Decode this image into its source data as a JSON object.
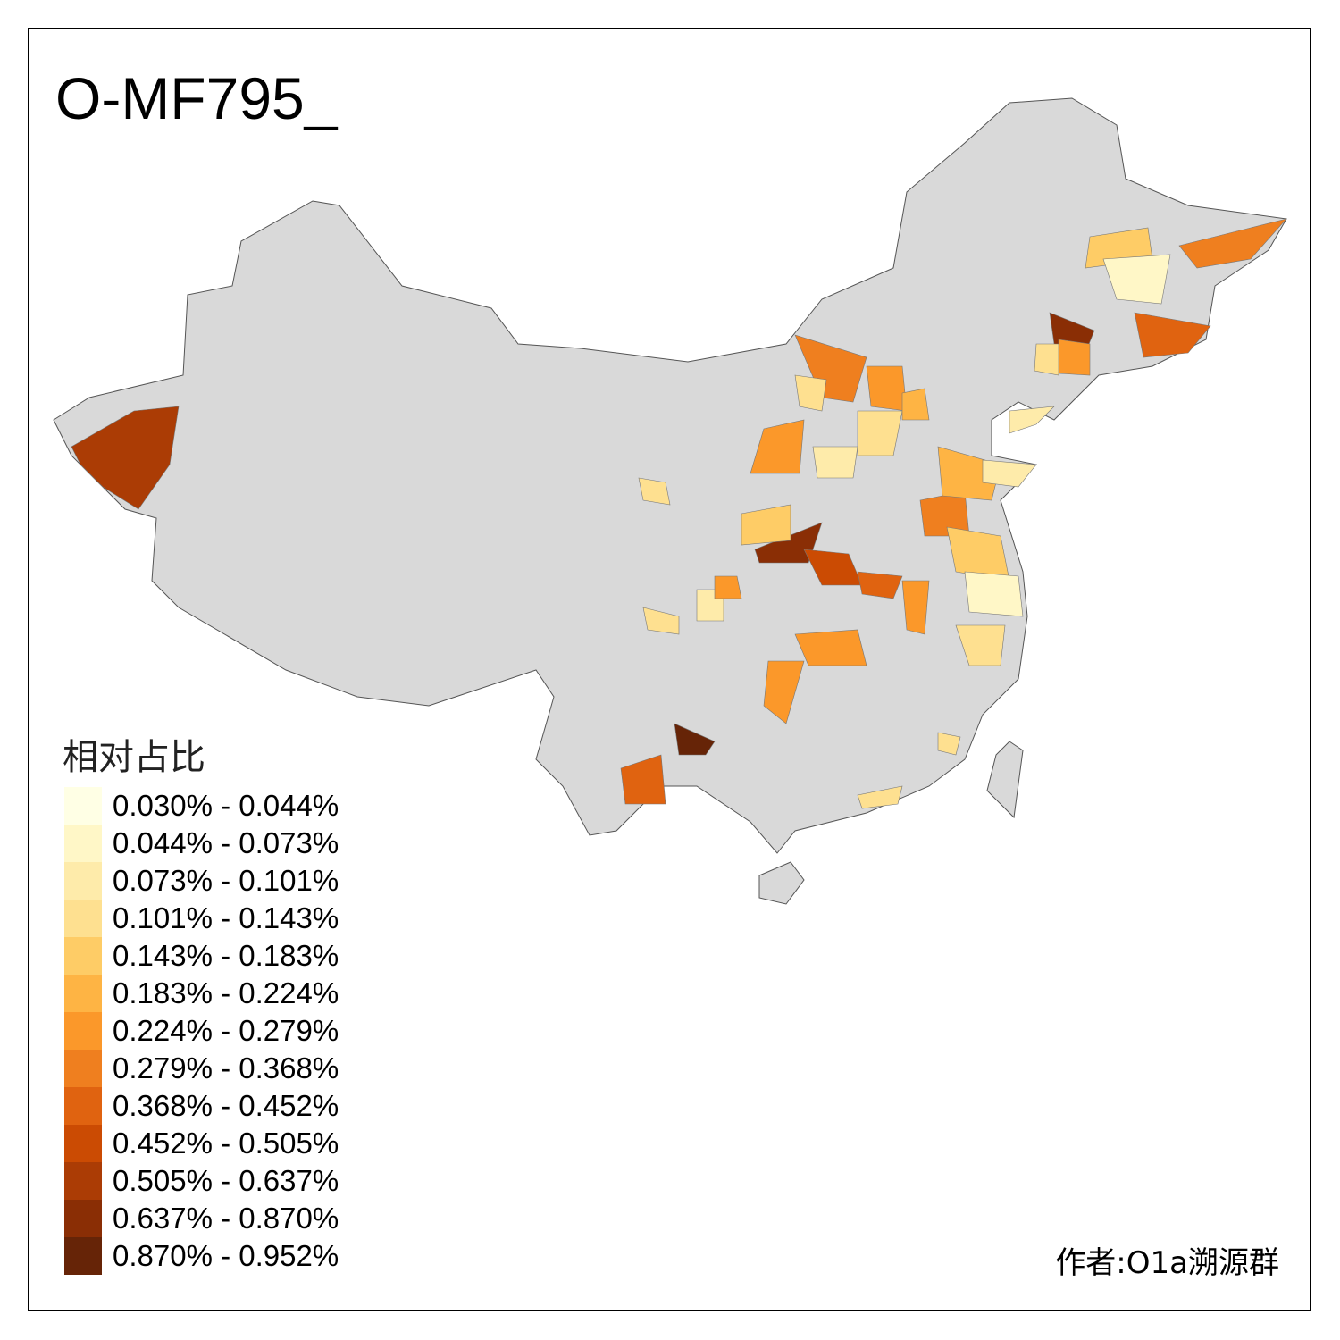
{
  "title": "O-MF795_",
  "legend": {
    "title": "相对占比",
    "items": [
      {
        "label": "0.030% - 0.044%",
        "color": "#FFFFE5"
      },
      {
        "label": "0.044% - 0.073%",
        "color": "#FFF7C7"
      },
      {
        "label": "0.073% - 0.101%",
        "color": "#FEEBAA"
      },
      {
        "label": "0.101% - 0.143%",
        "color": "#FEE090"
      },
      {
        "label": "0.143% - 0.183%",
        "color": "#FECC66"
      },
      {
        "label": "0.183% - 0.224%",
        "color": "#FEB444"
      },
      {
        "label": "0.224% - 0.279%",
        "color": "#FB982A"
      },
      {
        "label": "0.279% - 0.368%",
        "color": "#EF7F1F"
      },
      {
        "label": "0.368% - 0.452%",
        "color": "#E06310"
      },
      {
        "label": "0.452% - 0.505%",
        "color": "#CB4B03"
      },
      {
        "label": "0.505% - 0.637%",
        "color": "#AB3C05"
      },
      {
        "label": "0.637% - 0.870%",
        "color": "#8A2E05"
      },
      {
        "label": "0.870% - 0.952%",
        "color": "#662407"
      }
    ]
  },
  "map": {
    "base_color": "#D9D9D9",
    "no_data_note": ""
  },
  "author": "作者:O1a溯源群"
}
